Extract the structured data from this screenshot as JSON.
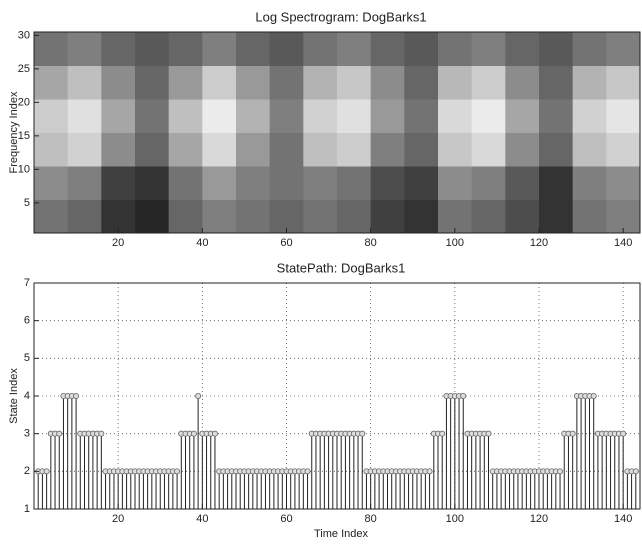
{
  "chart_data": [
    {
      "type": "heatmap",
      "title": "Log Spectrogram: DogBarks1",
      "ylabel": "Frequency Index",
      "xlim": [
        0,
        144
      ],
      "ylim": [
        0.5,
        30.5
      ],
      "xticks": [
        20,
        40,
        60,
        80,
        100,
        120,
        140
      ],
      "yticks": [
        5,
        10,
        15,
        20,
        25,
        30
      ],
      "z": [
        [
          45,
          40,
          20,
          15,
          40,
          50,
          45,
          40,
          45,
          40,
          25,
          20,
          45,
          40,
          30,
          20,
          45,
          50
        ],
        [
          55,
          50,
          25,
          20,
          45,
          60,
          50,
          45,
          50,
          45,
          30,
          25,
          55,
          50,
          35,
          20,
          50,
          55
        ],
        [
          75,
          82,
          55,
          40,
          65,
          85,
          60,
          45,
          75,
          80,
          50,
          40,
          78,
          85,
          55,
          40,
          75,
          82
        ],
        [
          80,
          88,
          65,
          45,
          75,
          92,
          70,
          50,
          82,
          88,
          60,
          45,
          85,
          92,
          65,
          45,
          82,
          90
        ],
        [
          65,
          75,
          55,
          40,
          60,
          80,
          60,
          45,
          70,
          78,
          55,
          40,
          72,
          80,
          55,
          40,
          70,
          78
        ],
        [
          45,
          50,
          40,
          35,
          40,
          50,
          40,
          35,
          45,
          50,
          40,
          35,
          45,
          50,
          40,
          35,
          45,
          50
        ]
      ]
    },
    {
      "type": "stem",
      "title": "StatePath: DogBarks1",
      "xlabel": "Time Index",
      "ylabel": "State Index",
      "xlim": [
        0,
        144
      ],
      "ylim": [
        1,
        7
      ],
      "xticks": [
        20,
        40,
        60,
        80,
        100,
        120,
        140
      ],
      "yticks": [
        1,
        2,
        3,
        4,
        5,
        6,
        7
      ],
      "grid": true,
      "color": "#222222",
      "x": [
        1,
        2,
        3,
        4,
        5,
        6,
        7,
        8,
        9,
        10,
        11,
        12,
        13,
        14,
        15,
        16,
        17,
        18,
        19,
        20,
        21,
        22,
        23,
        24,
        25,
        26,
        27,
        28,
        29,
        30,
        31,
        32,
        33,
        34,
        35,
        36,
        37,
        38,
        39,
        40,
        41,
        42,
        43,
        44,
        45,
        46,
        47,
        48,
        49,
        50,
        51,
        52,
        53,
        54,
        55,
        56,
        57,
        58,
        59,
        60,
        61,
        62,
        63,
        64,
        65,
        66,
        67,
        68,
        69,
        70,
        71,
        72,
        73,
        74,
        75,
        76,
        77,
        78,
        79,
        80,
        81,
        82,
        83,
        84,
        85,
        86,
        87,
        88,
        89,
        90,
        91,
        92,
        93,
        94,
        95,
        96,
        97,
        98,
        99,
        100,
        101,
        102,
        103,
        104,
        105,
        106,
        107,
        108,
        109,
        110,
        111,
        112,
        113,
        114,
        115,
        116,
        117,
        118,
        119,
        120,
        121,
        122,
        123,
        124,
        125,
        126,
        127,
        128,
        129,
        130,
        131,
        132,
        133,
        134,
        135,
        136,
        137,
        138,
        139,
        140,
        141,
        142,
        143
      ],
      "values": [
        2,
        2,
        2,
        3,
        3,
        3,
        4,
        4,
        4,
        4,
        3,
        3,
        3,
        3,
        3,
        3,
        2,
        2,
        2,
        2,
        2,
        2,
        2,
        2,
        2,
        2,
        2,
        2,
        2,
        2,
        2,
        2,
        2,
        2,
        3,
        3,
        3,
        3,
        4,
        3,
        3,
        3,
        3,
        2,
        2,
        2,
        2,
        2,
        2,
        2,
        2,
        2,
        2,
        2,
        2,
        2,
        2,
        2,
        2,
        2,
        2,
        2,
        2,
        2,
        2,
        3,
        3,
        3,
        3,
        3,
        3,
        3,
        3,
        3,
        3,
        3,
        3,
        3,
        2,
        2,
        2,
        2,
        2,
        2,
        2,
        2,
        2,
        2,
        2,
        2,
        2,
        2,
        2,
        2,
        3,
        3,
        3,
        4,
        4,
        4,
        4,
        4,
        3,
        3,
        3,
        3,
        3,
        3,
        2,
        2,
        2,
        2,
        2,
        2,
        2,
        2,
        2,
        2,
        2,
        2,
        2,
        2,
        2,
        2,
        2,
        3,
        3,
        3,
        4,
        4,
        4,
        4,
        4,
        3,
        3,
        3,
        3,
        3,
        3,
        3,
        2,
        2,
        2
      ]
    }
  ]
}
